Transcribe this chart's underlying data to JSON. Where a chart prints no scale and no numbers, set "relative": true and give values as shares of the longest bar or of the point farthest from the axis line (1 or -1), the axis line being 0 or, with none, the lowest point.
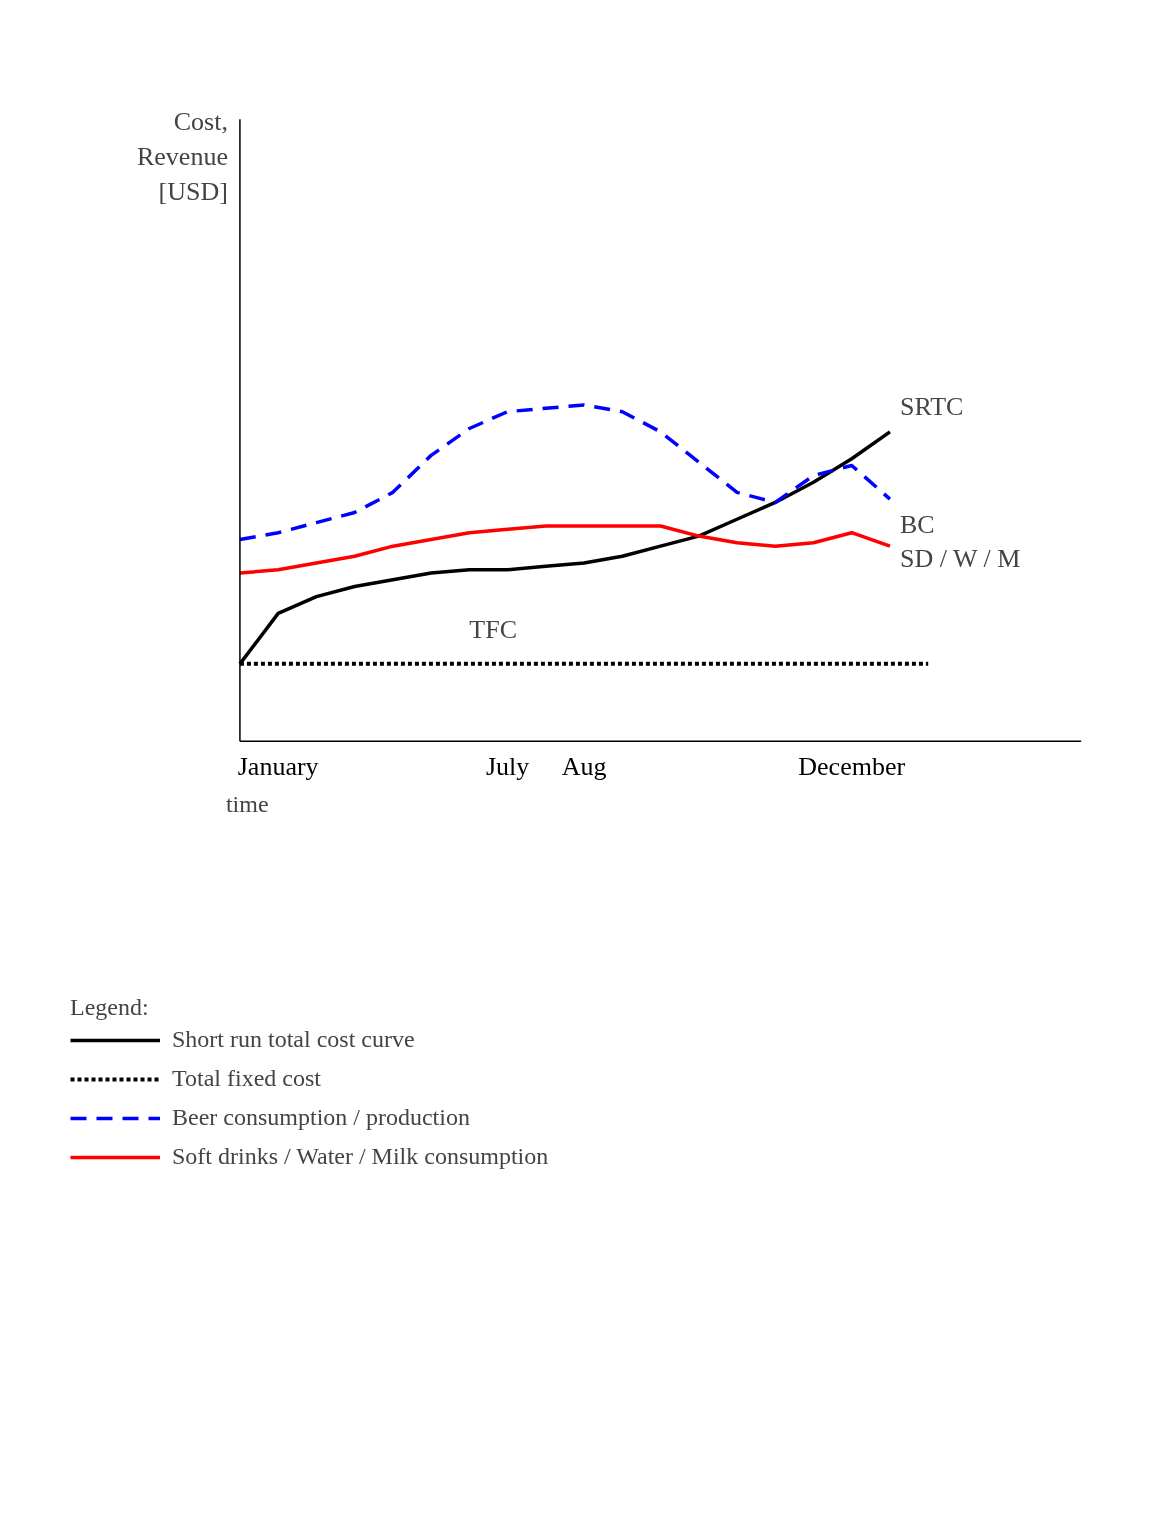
{
  "chart_data": {
    "type": "line",
    "relative": true,
    "xlabel": "time",
    "legend_title": "Legend:",
    "legend": "bottom",
    "grid": false,
    "categories": [
      null,
      "January",
      null,
      null,
      null,
      null,
      null,
      "July",
      null,
      "Aug",
      null,
      null,
      null,
      null,
      null,
      null,
      "December",
      null,
      null,
      null,
      null
    ],
    "series": [
      {
        "name": "Short run total cost curve",
        "color": "#000000",
        "line_style": "solid",
        "values": [
          0.23,
          0.38,
          0.43,
          0.46,
          0.48,
          0.5,
          0.51,
          0.51,
          0.52,
          0.53,
          0.55,
          0.58,
          0.61,
          0.66,
          0.71,
          0.77,
          0.84,
          0.92,
          null,
          null,
          null
        ]
      },
      {
        "name": "Total fixed cost",
        "color": "#000000",
        "line_style": "dotted",
        "values": [
          0.23,
          0.23,
          0.23,
          0.23,
          0.23,
          0.23,
          0.23,
          0.23,
          0.23,
          0.23,
          0.23,
          0.23,
          0.23,
          0.23,
          0.23,
          0.23,
          0.23,
          0.23,
          0.23,
          null,
          null
        ]
      },
      {
        "name": "Beer consumption / production",
        "color": "#0000ff",
        "line_style": "dashed",
        "values": [
          0.6,
          0.62,
          0.65,
          0.68,
          0.74,
          0.85,
          0.93,
          0.98,
          0.99,
          1.0,
          0.98,
          0.92,
          0.83,
          0.74,
          0.71,
          0.79,
          0.82,
          0.72,
          null,
          null,
          null
        ]
      },
      {
        "name": "Soft drinks / Water / Milk consumption",
        "color": "#ff0000",
        "line_style": "solid",
        "values": [
          0.5,
          0.51,
          0.53,
          0.55,
          0.58,
          0.6,
          0.62,
          0.63,
          0.64,
          0.64,
          0.64,
          0.64,
          0.61,
          0.59,
          0.58,
          0.59,
          0.62,
          0.58,
          null,
          null,
          null
        ]
      }
    ],
    "annotations": [
      "SRTC",
      "TFC",
      "BC",
      "SD / W / M",
      "Cost,\nRevenue\n[USD]"
    ]
  }
}
